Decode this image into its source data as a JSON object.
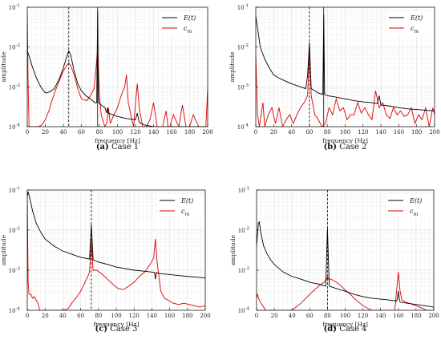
{
  "chart_data": [
    {
      "type": "line",
      "caption_letter": "(a)",
      "caption_text": "Case 1",
      "xlabel": "frequency [Hz]",
      "ylabel": "amplitude",
      "xlim": [
        0,
        200
      ],
      "ylim": [
        0.0001,
        0.1
      ],
      "yscale": "log",
      "grid": true,
      "legend": "top-right",
      "xticks": [
        "0",
        "20",
        "40",
        "60",
        "80",
        "100",
        "120",
        "140",
        "160",
        "180",
        "200"
      ],
      "yticks": [
        "10",
        "10",
        "10",
        "10"
      ],
      "ytick_exps": [
        "-4",
        "-3",
        "-2",
        "-1"
      ],
      "vlines": [
        {
          "x": 46,
          "style": "dashed"
        },
        {
          "x": 78,
          "style": "solid"
        }
      ],
      "series": [
        {
          "name": "E(t)",
          "subscript": "",
          "color": "#000000",
          "x": [
            0,
            2,
            5,
            10,
            15,
            20,
            25,
            30,
            35,
            40,
            44,
            46,
            48,
            52,
            56,
            60,
            65,
            70,
            75,
            77,
            78,
            79,
            82,
            86,
            88,
            89,
            90,
            95,
            100,
            110,
            120,
            122,
            124,
            126,
            130,
            140,
            150,
            160,
            170,
            180,
            190,
            200
          ],
          "y": [
            0.008,
            0.006,
            0.0035,
            0.0017,
            0.001,
            0.0007,
            0.00075,
            0.0009,
            0.0015,
            0.003,
            0.006,
            0.008,
            0.0065,
            0.0025,
            0.0012,
            0.0008,
            0.0006,
            0.0005,
            0.0004,
            0.0004,
            0.08,
            0.0004,
            0.00035,
            0.0003,
            0.00022,
            0.0003,
            0.00022,
            0.0002,
            0.00018,
            0.00016,
            0.00015,
            0.00022,
            0.00013,
            0.00012,
            0.00011,
            0.0001,
            0.0001,
            0.0001,
            0.0001,
            0.0001,
            0.0001,
            0.0001
          ]
        },
        {
          "name": "c",
          "subscript": "m",
          "color": "#dd0000",
          "x": [
            0,
            1,
            2,
            4,
            8,
            12,
            16,
            20,
            24,
            28,
            32,
            36,
            40,
            44,
            46,
            48,
            52,
            56,
            60,
            66,
            70,
            74,
            76,
            78,
            80,
            82,
            86,
            88,
            90,
            92,
            96,
            100,
            104,
            108,
            110,
            112,
            116,
            118,
            120,
            122,
            124,
            128,
            132,
            136,
            140,
            144,
            150,
            154,
            156,
            158,
            162,
            168,
            172,
            176,
            180,
            184,
            190,
            196,
            198,
            200
          ],
          "y": [
            0.07,
            0.001,
            0.0001,
            0.0001,
            0.0001,
            0.0001,
            0.00011,
            0.00015,
            0.00025,
            0.0005,
            0.0009,
            0.0015,
            0.0025,
            0.0035,
            0.004,
            0.0035,
            0.002,
            0.0009,
            0.0005,
            0.00045,
            0.0006,
            0.0009,
            0.0025,
            0.009,
            0.0006,
            0.0002,
            0.0001,
            0.00012,
            0.0003,
            0.00012,
            0.0002,
            0.0003,
            0.0006,
            0.001,
            0.002,
            0.0004,
            0.00015,
            0.0001,
            0.0004,
            0.0012,
            0.0003,
            0.0001,
            0.0001,
            0.00015,
            0.0004,
            0.0001,
            0.0001,
            0.00025,
            0.0001,
            0.0001,
            0.0002,
            0.0001,
            0.00035,
            0.0001,
            0.0001,
            0.0002,
            0.0001,
            0.0001,
            0.0001,
            0.0009
          ]
        }
      ]
    },
    {
      "type": "line",
      "caption_letter": "(b)",
      "caption_text": "Case 2",
      "xlabel": "frequency [Hz]",
      "ylabel": "amplitude",
      "xlim": [
        0,
        200
      ],
      "ylim": [
        0.0001,
        0.1
      ],
      "yscale": "log",
      "grid": true,
      "legend": "top-right",
      "xticks": [
        "0",
        "20",
        "40",
        "60",
        "80",
        "100",
        "120",
        "140",
        "160",
        "180",
        "200"
      ],
      "yticks": [
        "10",
        "10",
        "10",
        "10"
      ],
      "ytick_exps": [
        "-4",
        "-3",
        "-2",
        "-1"
      ],
      "vlines": [
        {
          "x": 60,
          "style": "dashed"
        },
        {
          "x": 76,
          "style": "solid"
        }
      ],
      "series": [
        {
          "name": "E(t)",
          "subscript": "",
          "color": "#000000",
          "x": [
            0,
            2,
            5,
            10,
            15,
            20,
            25,
            30,
            40,
            50,
            56,
            58,
            60,
            62,
            66,
            70,
            75,
            76,
            77,
            80,
            90,
            100,
            110,
            120,
            130,
            136,
            138,
            140,
            150,
            160,
            170,
            180,
            190,
            200
          ],
          "y": [
            0.06,
            0.03,
            0.01,
            0.005,
            0.003,
            0.002,
            0.0017,
            0.0015,
            0.0012,
            0.001,
            0.0009,
            0.002,
            0.013,
            0.0009,
            0.0008,
            0.0007,
            0.00065,
            0.065,
            0.00065,
            0.0006,
            0.00055,
            0.0005,
            0.00045,
            0.00042,
            0.0004,
            0.00038,
            0.0006,
            0.00035,
            0.00033,
            0.0003,
            0.00028,
            0.00027,
            0.00026,
            0.00025
          ]
        },
        {
          "name": "c",
          "subscript": "m",
          "color": "#dd0000",
          "x": [
            0,
            2,
            4,
            8,
            10,
            14,
            18,
            22,
            26,
            30,
            34,
            38,
            42,
            46,
            50,
            54,
            58,
            60,
            62,
            66,
            70,
            74,
            78,
            82,
            86,
            90,
            94,
            98,
            102,
            106,
            110,
            114,
            118,
            122,
            126,
            130,
            134,
            138,
            142,
            146,
            150,
            154,
            158,
            162,
            166,
            170,
            174,
            178,
            182,
            186,
            190,
            194,
            198,
            200
          ],
          "y": [
            0.006,
            0.0002,
            0.0001,
            0.0004,
            0.0001,
            0.0002,
            0.0003,
            0.00012,
            0.0003,
            0.0001,
            0.00015,
            0.0002,
            0.00012,
            0.0002,
            0.0003,
            0.0004,
            0.0006,
            0.008,
            0.0006,
            0.0002,
            0.00015,
            0.0001,
            0.00012,
            0.0003,
            0.0002,
            0.0005,
            0.00025,
            0.0003,
            0.00015,
            0.0002,
            0.0002,
            0.0004,
            0.00022,
            0.0003,
            0.0002,
            0.00015,
            0.0008,
            0.0003,
            0.0004,
            0.0002,
            0.00016,
            0.0003,
            0.0002,
            0.00025,
            0.00018,
            0.0002,
            0.0003,
            0.00012,
            0.0002,
            0.00015,
            0.0003,
            0.0001,
            0.0003,
            0.0002
          ]
        }
      ]
    },
    {
      "type": "line",
      "caption_letter": "(c)",
      "caption_text": "Case 3",
      "xlabel": "frequency [Hz]",
      "ylabel": "amplitude",
      "xlim": [
        0,
        200
      ],
      "ylim": [
        0.0001,
        0.1
      ],
      "yscale": "log",
      "grid": true,
      "legend": "top-right",
      "xticks": [
        "0",
        "20",
        "40",
        "60",
        "80",
        "100",
        "120",
        "140",
        "160",
        "180",
        "200"
      ],
      "yticks": [
        "10",
        "10",
        "10",
        "10"
      ],
      "ytick_exps": [
        "-4",
        "-3",
        "-2",
        "-1"
      ],
      "vlines": [
        {
          "x": 72,
          "style": "dashed"
        }
      ],
      "series": [
        {
          "name": "E(t)",
          "subscript": "",
          "color": "#000000",
          "x": [
            0,
            1,
            3,
            6,
            10,
            15,
            20,
            30,
            40,
            50,
            60,
            70,
            71,
            72,
            73,
            74,
            80,
            90,
            100,
            110,
            120,
            130,
            140,
            143,
            144,
            145,
            146,
            150,
            160,
            170,
            180,
            190,
            200
          ],
          "y": [
            0.07,
            0.09,
            0.06,
            0.03,
            0.015,
            0.009,
            0.006,
            0.004,
            0.003,
            0.0025,
            0.0021,
            0.0019,
            0.005,
            0.014,
            0.005,
            0.0018,
            0.0016,
            0.0014,
            0.0012,
            0.0011,
            0.001,
            0.00095,
            0.0009,
            0.00088,
            0.0006,
            0.00088,
            0.00085,
            0.00082,
            0.00078,
            0.00074,
            0.0007,
            0.00067,
            0.00064
          ]
        },
        {
          "name": "c",
          "subscript": "m",
          "color": "#dd0000",
          "x": [
            0,
            1,
            2,
            4,
            6,
            8,
            10,
            12,
            14,
            16,
            20,
            30,
            40,
            46,
            50,
            56,
            60,
            64,
            68,
            70,
            71,
            72,
            73,
            74,
            78,
            84,
            90,
            96,
            102,
            108,
            114,
            120,
            126,
            132,
            138,
            142,
            144,
            146,
            150,
            154,
            158,
            164,
            170,
            176,
            182,
            188,
            194,
            200
          ],
          "y": [
            0.07,
            0.0005,
            0.00025,
            0.00025,
            0.0002,
            0.00022,
            0.00018,
            0.00015,
            0.0001,
            0.0001,
            0.0001,
            0.0001,
            0.0001,
            0.00011,
            0.00015,
            0.00022,
            0.0003,
            0.00045,
            0.0007,
            0.0009,
            0.002,
            0.006,
            0.002,
            0.001,
            0.001,
            0.0008,
            0.0006,
            0.00045,
            0.00035,
            0.00033,
            0.0004,
            0.0005,
            0.0007,
            0.0009,
            0.0014,
            0.002,
            0.006,
            0.0015,
            0.0003,
            0.0002,
            0.00018,
            0.00015,
            0.00014,
            0.00015,
            0.00014,
            0.00013,
            0.00012,
            0.00013
          ]
        }
      ]
    },
    {
      "type": "line",
      "caption_letter": "(d)",
      "caption_text": "Case 4",
      "xlabel": "frequency [Hz]",
      "ylabel": "amplitude",
      "xlim": [
        0,
        200
      ],
      "ylim": [
        0.0001,
        0.1
      ],
      "yscale": "log",
      "grid": true,
      "legend": "top-right",
      "xticks": [
        "0",
        "20",
        "40",
        "60",
        "80",
        "100",
        "120",
        "140",
        "160",
        "180",
        "200"
      ],
      "yticks": [
        "10",
        "10",
        "10",
        "10"
      ],
      "ytick_exps": [
        "-4",
        "-3",
        "-2",
        "-1"
      ],
      "vlines": [
        {
          "x": 80,
          "style": "dashed"
        }
      ],
      "series": [
        {
          "name": "E(t)",
          "subscript": "",
          "color": "#000000",
          "x": [
            0,
            2,
            3,
            5,
            8,
            12,
            16,
            20,
            30,
            40,
            50,
            60,
            70,
            78,
            79,
            80,
            81,
            82,
            90,
            100,
            110,
            120,
            130,
            140,
            150,
            158,
            159,
            160,
            161,
            162,
            170,
            180,
            190,
            200
          ],
          "y": [
            0.004,
            0.015,
            0.016,
            0.008,
            0.004,
            0.0025,
            0.0018,
            0.0014,
            0.0009,
            0.0007,
            0.0006,
            0.0005,
            0.00045,
            0.0004,
            0.002,
            0.011,
            0.002,
            0.0004,
            0.00035,
            0.0003,
            0.00025,
            0.00022,
            0.0002,
            0.00019,
            0.00018,
            0.00017,
            0.0002,
            0.0003,
            0.0002,
            0.00016,
            0.00015,
            0.00014,
            0.00013,
            0.00012
          ]
        },
        {
          "name": "c",
          "subscript": "m",
          "color": "#dd0000",
          "x": [
            0,
            1,
            3,
            5,
            8,
            10,
            14,
            18,
            22,
            26,
            30,
            40,
            50,
            60,
            70,
            76,
            79,
            80,
            81,
            84,
            90,
            96,
            100,
            106,
            110,
            120,
            130,
            140,
            150,
            156,
            158,
            160,
            162,
            164,
            168,
            172,
            176,
            180,
            184,
            188,
            192,
            196,
            200
          ],
          "y": [
            0.0002,
            0.00025,
            0.00018,
            0.00015,
            0.00012,
            0.0001,
            0.0001,
            0.0001,
            0.0001,
            0.0001,
            0.0001,
            0.0001,
            0.00015,
            0.00025,
            0.0004,
            0.0005,
            0.0006,
            0.0007,
            0.0006,
            0.0006,
            0.0005,
            0.0004,
            0.00032,
            0.00025,
            0.0002,
            0.00013,
            0.0001,
            0.0001,
            0.0001,
            0.0001,
            0.0003,
            0.0009,
            0.0003,
            0.00018,
            0.00016,
            0.00015,
            0.00014,
            0.00013,
            0.00012,
            0.00011,
            0.0001,
            0.0001,
            0.0001
          ]
        }
      ]
    }
  ]
}
